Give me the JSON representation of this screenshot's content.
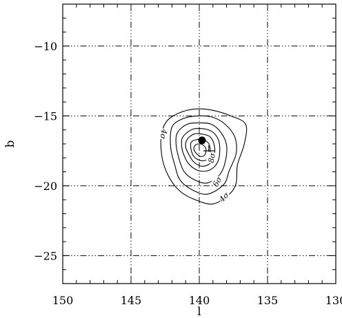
{
  "chart_data": {
    "type": "contour",
    "xlabel": "l",
    "ylabel": "b",
    "xlim": [
      150,
      130
    ],
    "ylim": [
      -27,
      -7
    ],
    "xticks": [
      150,
      145,
      140,
      135,
      130
    ],
    "yticks": [
      -10,
      -15,
      -20,
      -25
    ],
    "x_tick_labels": [
      "150",
      "145",
      "140",
      "135",
      "130"
    ],
    "y_tick_labels": [
      "−10",
      "−15",
      "−20",
      "−25"
    ],
    "grid": true,
    "grid_style": "dash-dot",
    "contour_levels_sigma": [
      4,
      5,
      6,
      7,
      8,
      9,
      10
    ],
    "contour_labels": [
      {
        "text": "4σ",
        "l": 142.6,
        "b": -16.3,
        "angle": 100
      },
      {
        "text": "8σ",
        "l": 139.1,
        "b": -18.0,
        "angle": -80
      },
      {
        "text": "6σ",
        "l": 138.7,
        "b": -19.7,
        "angle": -60
      },
      {
        "text": "4σ",
        "l": 138.2,
        "b": -20.8,
        "angle": -45
      }
    ],
    "contours": [
      {
        "level": "4σ",
        "points": [
          [
            142.4,
            -15.4
          ],
          [
            141.5,
            -14.8
          ],
          [
            140.3,
            -14.5
          ],
          [
            139.0,
            -14.6
          ],
          [
            137.7,
            -15.0
          ],
          [
            136.6,
            -15.6
          ],
          [
            136.7,
            -17.0
          ],
          [
            137.2,
            -18.5
          ],
          [
            137.3,
            -19.8
          ],
          [
            137.8,
            -20.6
          ],
          [
            139.0,
            -21.3
          ],
          [
            140.3,
            -21.0
          ],
          [
            141.4,
            -20.4
          ],
          [
            142.2,
            -19.4
          ],
          [
            142.7,
            -18.1
          ],
          [
            142.8,
            -16.5
          ]
        ]
      },
      {
        "level": "5σ",
        "points": [
          [
            142.0,
            -15.8
          ],
          [
            141.2,
            -15.2
          ],
          [
            140.1,
            -15.0
          ],
          [
            139.0,
            -15.1
          ],
          [
            138.1,
            -15.6
          ],
          [
            137.4,
            -16.5
          ],
          [
            137.3,
            -17.7
          ],
          [
            137.8,
            -18.9
          ],
          [
            138.2,
            -19.9
          ],
          [
            139.4,
            -20.6
          ],
          [
            140.5,
            -20.3
          ],
          [
            141.4,
            -19.6
          ],
          [
            141.8,
            -18.5
          ],
          [
            142.1,
            -17.2
          ]
        ]
      },
      {
        "level": "6σ",
        "points": [
          [
            141.6,
            -16.2
          ],
          [
            140.9,
            -15.6
          ],
          [
            140.0,
            -15.5
          ],
          [
            139.1,
            -15.6
          ],
          [
            138.4,
            -16.2
          ],
          [
            138.0,
            -17.1
          ],
          [
            138.1,
            -18.3
          ],
          [
            138.5,
            -19.2
          ],
          [
            139.4,
            -19.8
          ],
          [
            140.3,
            -19.6
          ],
          [
            141.1,
            -19.0
          ],
          [
            141.5,
            -18.0
          ],
          [
            141.7,
            -17.0
          ]
        ]
      },
      {
        "level": "7σ",
        "points": [
          [
            141.2,
            -16.5
          ],
          [
            140.6,
            -16.0
          ],
          [
            139.9,
            -15.9
          ],
          [
            139.1,
            -16.1
          ],
          [
            138.6,
            -16.7
          ],
          [
            138.5,
            -17.6
          ],
          [
            138.7,
            -18.4
          ],
          [
            139.3,
            -18.9
          ],
          [
            140.1,
            -18.9
          ],
          [
            140.8,
            -18.4
          ],
          [
            141.2,
            -17.6
          ],
          [
            141.3,
            -17.0
          ]
        ]
      },
      {
        "level": "8σ",
        "points": [
          [
            140.9,
            -16.7
          ],
          [
            140.4,
            -16.3
          ],
          [
            139.8,
            -16.3
          ],
          [
            139.2,
            -16.5
          ],
          [
            138.9,
            -17.1
          ],
          [
            138.9,
            -17.8
          ],
          [
            139.2,
            -18.4
          ],
          [
            139.8,
            -18.6
          ],
          [
            140.4,
            -18.3
          ],
          [
            140.8,
            -17.7
          ],
          [
            141.0,
            -17.2
          ]
        ]
      },
      {
        "level": "9σ",
        "points": [
          [
            140.6,
            -16.9
          ],
          [
            140.2,
            -16.7
          ],
          [
            139.7,
            -16.7
          ],
          [
            139.3,
            -17.0
          ],
          [
            139.2,
            -17.6
          ],
          [
            139.4,
            -18.1
          ],
          [
            139.9,
            -18.2
          ],
          [
            140.4,
            -17.9
          ],
          [
            140.6,
            -17.4
          ]
        ]
      },
      {
        "level": "10σ",
        "points": [
          [
            140.3,
            -17.1
          ],
          [
            140.0,
            -17.0
          ],
          [
            139.7,
            -17.1
          ],
          [
            139.5,
            -17.4
          ],
          [
            139.6,
            -17.8
          ],
          [
            139.9,
            -17.9
          ],
          [
            140.2,
            -17.7
          ],
          [
            140.4,
            -17.4
          ]
        ]
      }
    ],
    "markers": [
      {
        "kind": "filled-circle",
        "l": 139.8,
        "b": -16.75
      },
      {
        "kind": "cross",
        "l": 139.3,
        "b": -17.5
      }
    ]
  }
}
